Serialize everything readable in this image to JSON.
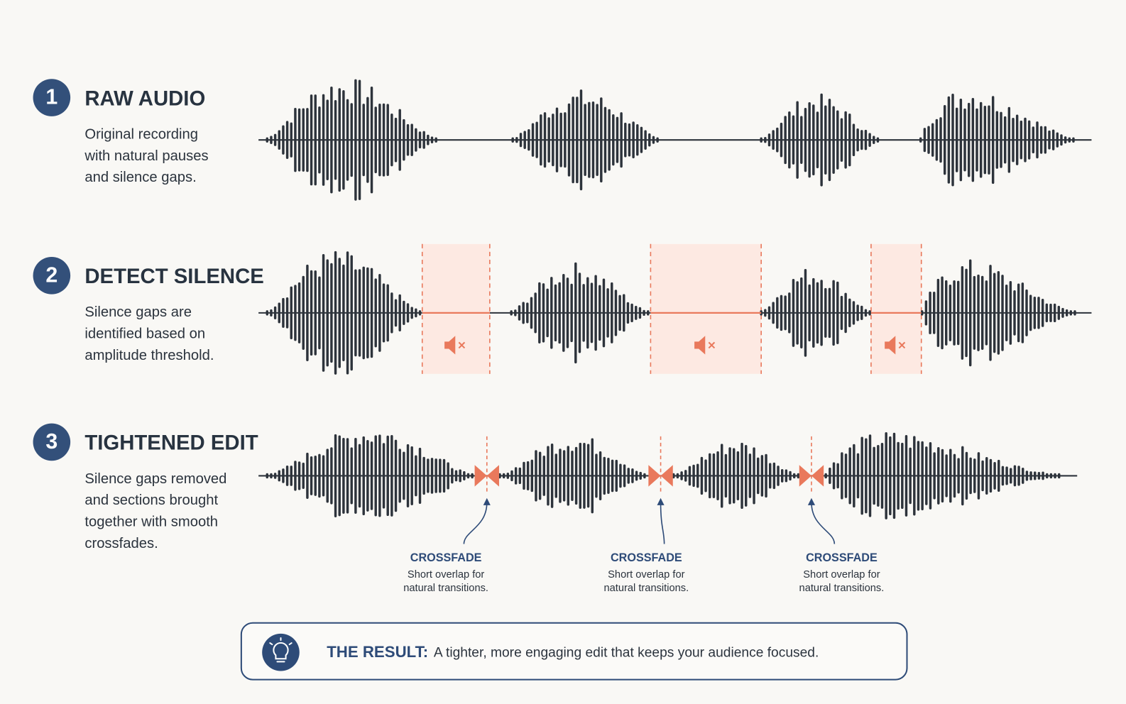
{
  "steps": [
    {
      "number": "1",
      "title": "RAW AUDIO",
      "description": [
        "Original recording",
        "with natural pauses",
        "and silence gaps."
      ]
    },
    {
      "number": "2",
      "title": "DETECT SILENCE",
      "description": [
        "Silence gaps are",
        "identified based on",
        "amplitude threshold."
      ]
    },
    {
      "number": "3",
      "title": "TIGHTENED EDIT",
      "description": [
        "Silence gaps removed",
        "and sections brought",
        "together with smooth",
        "crossfades."
      ]
    }
  ],
  "crossfades": [
    {
      "title": "CROSSFADE",
      "description": [
        "Short overlap for",
        "natural transitions."
      ]
    },
    {
      "title": "CROSSFADE",
      "description": [
        "Short overlap for",
        "natural transitions."
      ]
    },
    {
      "title": "CROSSFADE",
      "description": [
        "Short overlap for",
        "natural transitions."
      ]
    }
  ],
  "result": {
    "label": "THE RESULT:",
    "text": "A tighter, more engaging edit that keeps your audience focused."
  }
}
